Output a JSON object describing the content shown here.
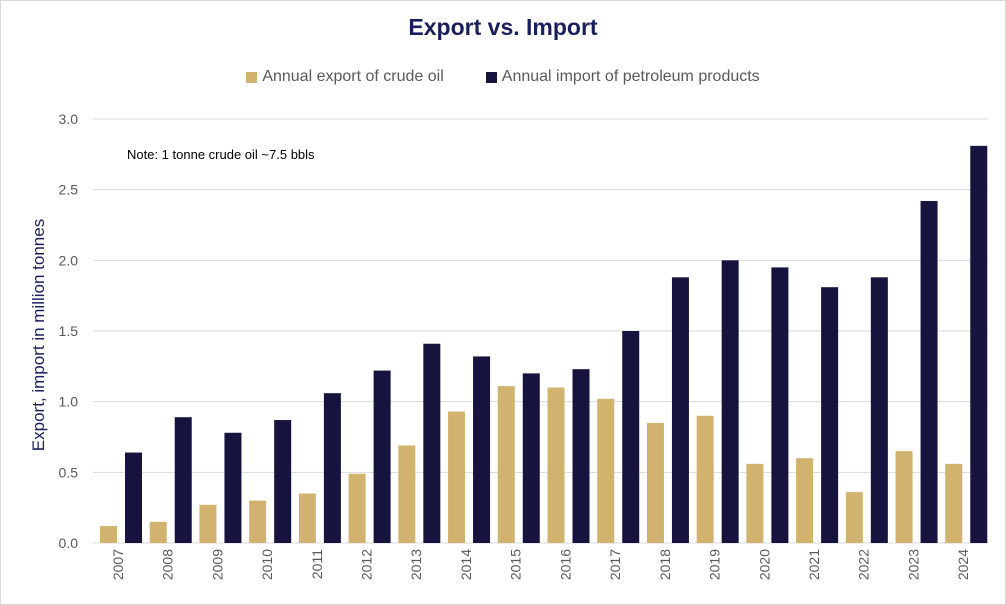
{
  "chart_data": {
    "type": "bar",
    "title": "Export vs. Import",
    "ylabel": "Export, import in million tonnes",
    "xlabel": "",
    "ylim": [
      0,
      3.0
    ],
    "yticks": [
      "0.0",
      "0.5",
      "1.0",
      "1.5",
      "2.0",
      "2.5",
      "3.0"
    ],
    "grid": true,
    "legend_position": "top",
    "note": "Note: 1 tonne crude oil ~7.5 bbls",
    "categories": [
      "2007",
      "2008",
      "2009",
      "2010",
      "2011",
      "2012",
      "2013",
      "2014",
      "2015",
      "2016",
      "2017",
      "2018",
      "2019",
      "2020",
      "2021",
      "2022",
      "2023",
      "2024"
    ],
    "series": [
      {
        "name": "Annual export of crude oil",
        "color": "#d1b26f",
        "values": [
          0.12,
          0.15,
          0.27,
          0.3,
          0.35,
          0.49,
          0.69,
          0.93,
          1.11,
          1.1,
          1.02,
          0.85,
          0.9,
          0.56,
          0.6,
          0.36,
          0.65,
          0.56
        ]
      },
      {
        "name": "Annual import of petroleum products",
        "color": "#16133f",
        "values": [
          0.64,
          0.89,
          0.78,
          0.87,
          1.06,
          1.22,
          1.41,
          1.32,
          1.2,
          1.23,
          1.5,
          1.88,
          2.0,
          1.95,
          1.81,
          1.88,
          2.42,
          2.81
        ]
      }
    ]
  },
  "colors": {
    "title": "#1a1f5c",
    "gridline": "#d9d9d9",
    "tick_text": "#595959"
  }
}
